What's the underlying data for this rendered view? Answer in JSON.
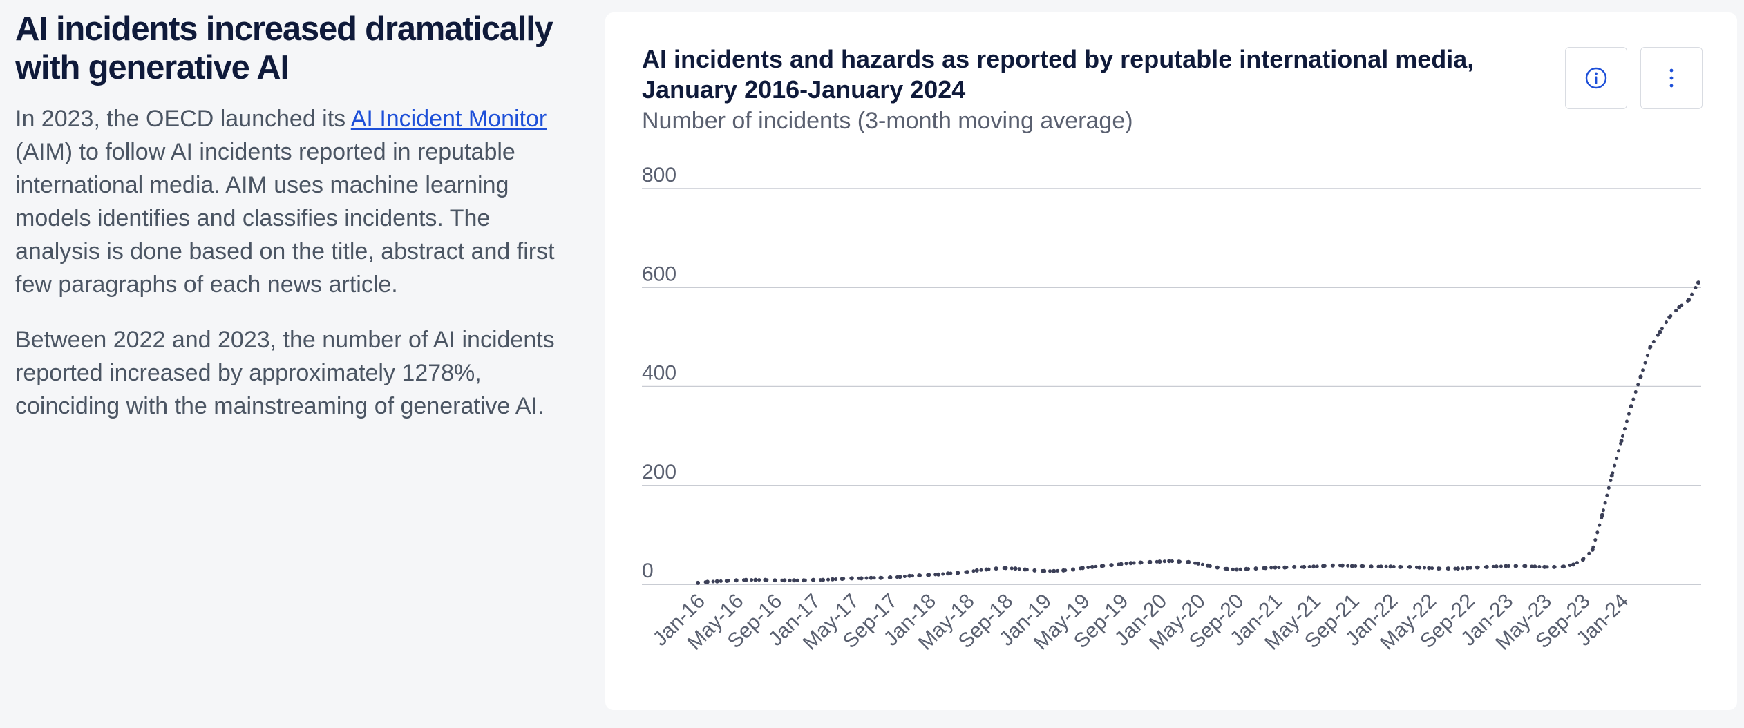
{
  "article": {
    "heading": "AI incidents increased dramatically with generative AI",
    "p1_before": "In 2023, the OECD launched its ",
    "p1_link": "AI Incident Monitor",
    "p1_after": " (AIM) to follow AI incidents reported in reputable international media. AIM uses machine learning models identifies and classifies incidents. The analysis is done based on the title, abstract and first few paragraphs of each news article.",
    "p2": "Between 2022 and 2023, the number of AI incidents reported increased by approximately 1278%, coinciding with the mainstreaming of generative AI."
  },
  "card": {
    "info_icon": "info-icon",
    "more_icon": "more-vertical-icon"
  },
  "colors": {
    "line": "#3b3f57",
    "grid": "#c9ccd3",
    "link": "#1d4fd8",
    "heading": "#0f1a3a"
  },
  "chart_data": {
    "type": "line",
    "title": "AI incidents and hazards as reported by reputable international media, January 2016-January 2024",
    "subtitle": "Number of incidents (3-month moving average)",
    "xlabel": "",
    "ylabel": "",
    "ylim": [
      0,
      800
    ],
    "yticks": [
      0,
      200,
      400,
      600,
      800
    ],
    "grid": true,
    "line_style": "dotted",
    "xticks": [
      "Jan-16",
      "May-16",
      "Sep-16",
      "Jan-17",
      "May-17",
      "Sep-17",
      "Jan-18",
      "May-18",
      "Sep-18",
      "Jan-19",
      "May-19",
      "Sep-19",
      "Jan-20",
      "May-20",
      "Sep-20",
      "Jan-21",
      "May-21",
      "Sep-21",
      "Jan-22",
      "May-22",
      "Sep-22",
      "Jan-23",
      "May-23",
      "Sep-23",
      "Jan-24"
    ],
    "series": [
      {
        "values": [
          3,
          5,
          6,
          7,
          8,
          9,
          9,
          9,
          8,
          8,
          8,
          8,
          9,
          9,
          10,
          11,
          12,
          12,
          13,
          13,
          14,
          15,
          17,
          18,
          19,
          20,
          22,
          23,
          25,
          28,
          30,
          32,
          33,
          32,
          30,
          28,
          27,
          27,
          28,
          30,
          33,
          35,
          37,
          39,
          41,
          43,
          44,
          45,
          46,
          47,
          46,
          45,
          42,
          38,
          34,
          31,
          30,
          31,
          32,
          33,
          34,
          34,
          35,
          35,
          36,
          37,
          38,
          38,
          37,
          37,
          36,
          36,
          36,
          35,
          35,
          34,
          33,
          32,
          32,
          32,
          33,
          34,
          35,
          36,
          37,
          37,
          37,
          36,
          35,
          35,
          36,
          40,
          50,
          70,
          140,
          220,
          290,
          360,
          420,
          480,
          510,
          540,
          560,
          575,
          610
        ]
      }
    ]
  }
}
